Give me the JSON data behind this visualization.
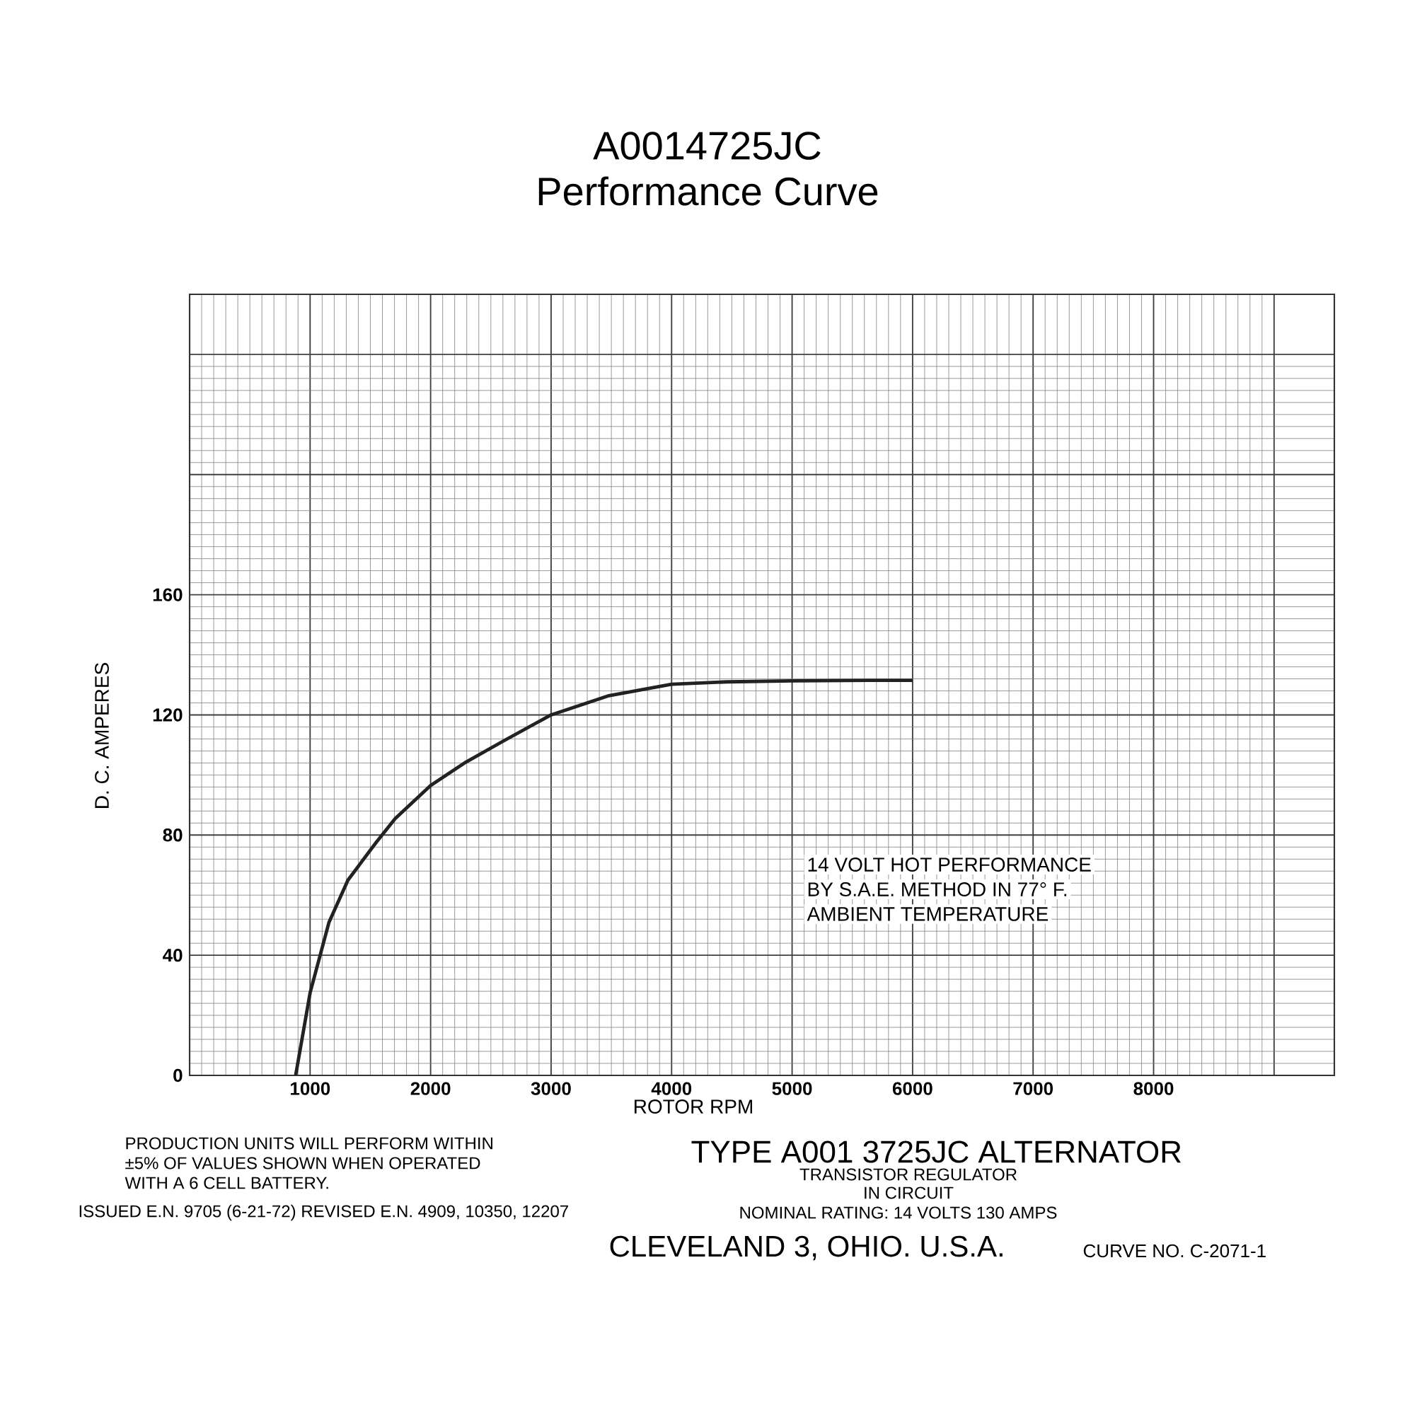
{
  "chart_data": {
    "type": "line",
    "title": "A0014725JC",
    "subtitle": "Performance Curve",
    "xlabel": "ROTOR RPM",
    "ylabel": "D. C. AMPERES",
    "x": [
      880,
      1000,
      1157,
      1314,
      1549,
      1706,
      2000,
      2294,
      2608,
      3000,
      3471,
      4000,
      4459,
      5000,
      5635,
      6000
    ],
    "series": [
      {
        "color": "#222222",
        "values": [
          0,
          27.5,
          51,
          65,
          77.6,
          85.5,
          96.5,
          104.3,
          111.4,
          120,
          126.3,
          130.2,
          131,
          131.3,
          131.5,
          131.5
        ]
      }
    ],
    "xlim": [
      0,
      9500
    ],
    "ylim": [
      0,
      260
    ],
    "xticks": [
      {
        "value": 0,
        "label": null
      },
      1000,
      2000,
      3000,
      4000,
      5000,
      6000,
      7000,
      8000,
      {
        "value": 9000,
        "label": null
      }
    ],
    "yticks": [
      0,
      40,
      80,
      120,
      160,
      {
        "value": 200,
        "label": null
      },
      {
        "value": 240,
        "label": null
      }
    ],
    "grid": true,
    "annotations": [
      "14 VOLT HOT PERFORMANCE",
      "BY S.A.E. METHOD IN 77° F.",
      "AMBIENT TEMPERATURE",
      "PRODUCTION UNITS WILL PERFORM WITHIN",
      "±5% OF VALUES SHOWN WHEN OPERATED",
      "WITH A 6 CELL BATTERY.",
      "TYPE A001 3725JC ALTERNATOR",
      "TRANSISTOR REGULATOR",
      "IN CIRCUIT",
      "ISSUED E.N. 9705 (6-21-72) REVISED E.N. 4909, 10350, 12207",
      "NOMINAL RATING: 14 VOLTS 130 AMPS",
      "CLEVELAND 3, OHIO. U.S.A.",
      "CURVE NO. C-2071-1"
    ]
  }
}
